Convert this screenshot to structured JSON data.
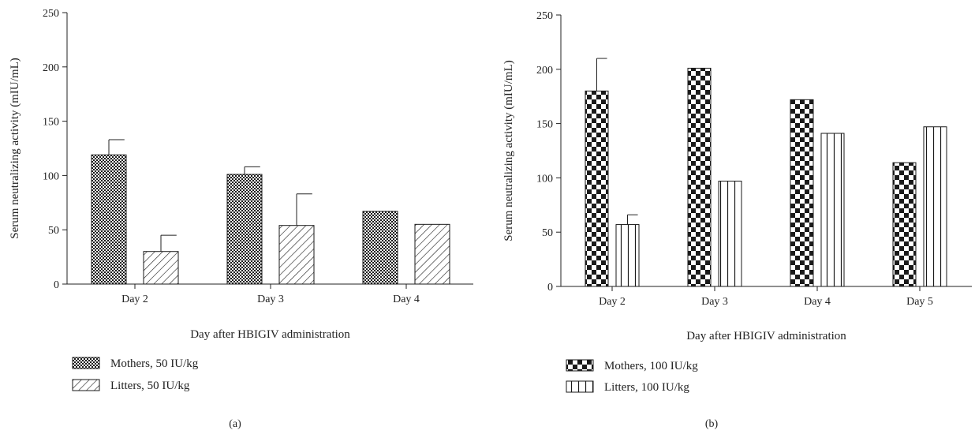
{
  "chart_data": [
    {
      "type": "bar",
      "panel_label": "(a)",
      "categories": [
        "Day 2",
        "Day 3",
        "Day 4"
      ],
      "ylim": [
        0,
        250
      ],
      "yticks": [
        0,
        50,
        100,
        150,
        200,
        250
      ],
      "ylabel": "Serum neutralizing activity (mIU/mL)",
      "xlabel": "Day after HBIGIV administration",
      "legend_position": "bottom-left",
      "series": [
        {
          "name": "Mothers, 50 IU/kg",
          "pattern": "fine-checker",
          "values": [
            119,
            101,
            67
          ],
          "errors": [
            14,
            7,
            null
          ]
        },
        {
          "name": "Litters, 50 IU/kg",
          "pattern": "diagonal-hatch",
          "values": [
            30,
            54,
            55
          ],
          "errors": [
            15,
            29,
            null
          ]
        }
      ]
    },
    {
      "type": "bar",
      "panel_label": "(b)",
      "categories": [
        "Day 2",
        "Day 3",
        "Day 4",
        "Day 5"
      ],
      "ylim": [
        0,
        250
      ],
      "yticks": [
        0,
        50,
        100,
        150,
        200,
        250
      ],
      "ylabel": "Serum neutralizing activity (mIU/mL)",
      "xlabel": "Day after HBIGIV administration",
      "legend_position": "bottom-left",
      "series": [
        {
          "name": "Mothers, 100 IU/kg",
          "pattern": "coarse-checker",
          "values": [
            180,
            201,
            172,
            114
          ],
          "errors": [
            30,
            null,
            null,
            null
          ]
        },
        {
          "name": "Litters, 100 IU/kg",
          "pattern": "vertical-stripes",
          "values": [
            57,
            97,
            141,
            147
          ],
          "errors": [
            9,
            null,
            null,
            null
          ]
        }
      ]
    }
  ]
}
